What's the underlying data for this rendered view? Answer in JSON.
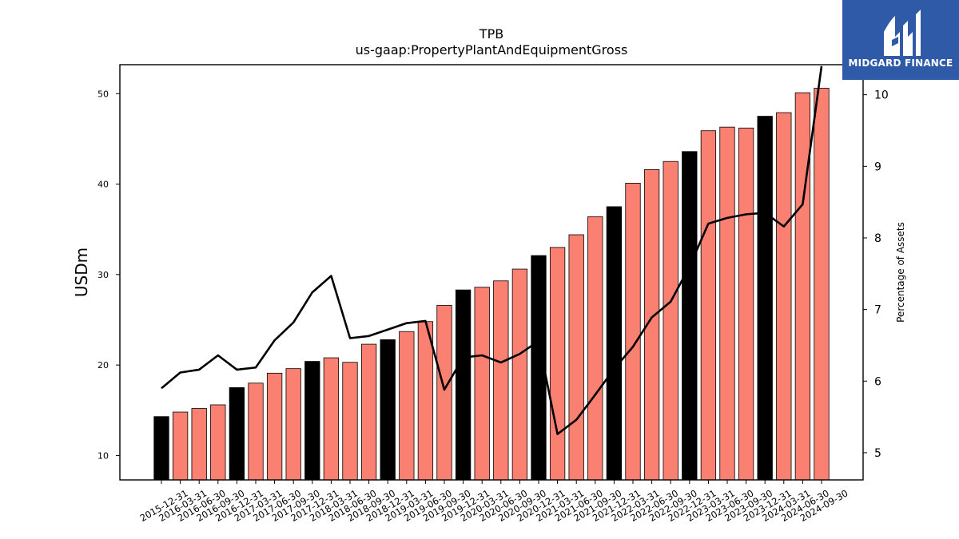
{
  "chart_data": {
    "type": "bar",
    "title": "TPB",
    "subtitle": "us-gaap:PropertyPlantAndEquipmentGross",
    "ylabel": "USDm",
    "y2label": "Percentage of Assets",
    "ylim": [
      7.3,
      53.2
    ],
    "y2lim": [
      4.62,
      10.42
    ],
    "yticks": [
      10,
      20,
      30,
      40,
      50
    ],
    "y2ticks": [
      5,
      6,
      7,
      8,
      9,
      10
    ],
    "categories": [
      "2015-12-31",
      "2016-03-31",
      "2016-06-30",
      "2016-09-30",
      "2016-12-31",
      "2017-03-31",
      "2017-06-30",
      "2017-09-30",
      "2017-12-31",
      "2018-03-31",
      "2018-06-30",
      "2018-09-30",
      "2018-12-31",
      "2019-03-31",
      "2019-06-30",
      "2019-09-30",
      "2019-12-31",
      "2020-03-31",
      "2020-06-30",
      "2020-09-30",
      "2020-12-31",
      "2021-03-31",
      "2021-06-30",
      "2021-09-30",
      "2021-12-31",
      "2022-03-31",
      "2022-06-30",
      "2022-09-30",
      "2022-12-31",
      "2023-03-31",
      "2023-06-30",
      "2023-09-30",
      "2023-12-31",
      "2024-03-31",
      "2024-06-30",
      "2024-09-30"
    ],
    "series": [
      {
        "values": [
          14.3,
          14.8,
          15.2,
          15.6,
          17.5,
          18.0,
          19.1,
          19.6,
          20.4,
          20.8,
          20.3,
          22.3,
          22.8,
          23.7,
          24.8,
          26.6,
          28.3,
          28.6,
          29.3,
          30.6,
          32.1,
          33.0,
          34.4,
          36.4,
          37.5,
          40.1,
          41.6,
          42.5,
          43.6,
          45.9,
          46.3,
          46.2,
          47.5,
          47.9,
          50.1,
          50.6
        ],
        "colors": {
          "year_end": "#000000",
          "quarter": "#fa8072"
        }
      },
      {
        "axis": "right",
        "type": "line",
        "values": [
          5.9,
          6.12,
          6.16,
          6.36,
          6.16,
          6.19,
          6.57,
          6.82,
          7.24,
          7.47,
          6.6,
          6.63,
          6.72,
          6.81,
          6.84,
          5.88,
          6.33,
          6.36,
          6.26,
          6.38,
          6.56,
          5.26,
          5.46,
          5.81,
          6.17,
          6.48,
          6.89,
          7.11,
          7.6,
          8.2,
          8.28,
          8.33,
          8.35,
          8.16,
          8.47,
          10.4
        ],
        "color": "#000000"
      }
    ]
  },
  "logo": {
    "text": "MIDGARD FINANCE",
    "color": "#2f5aa8"
  }
}
